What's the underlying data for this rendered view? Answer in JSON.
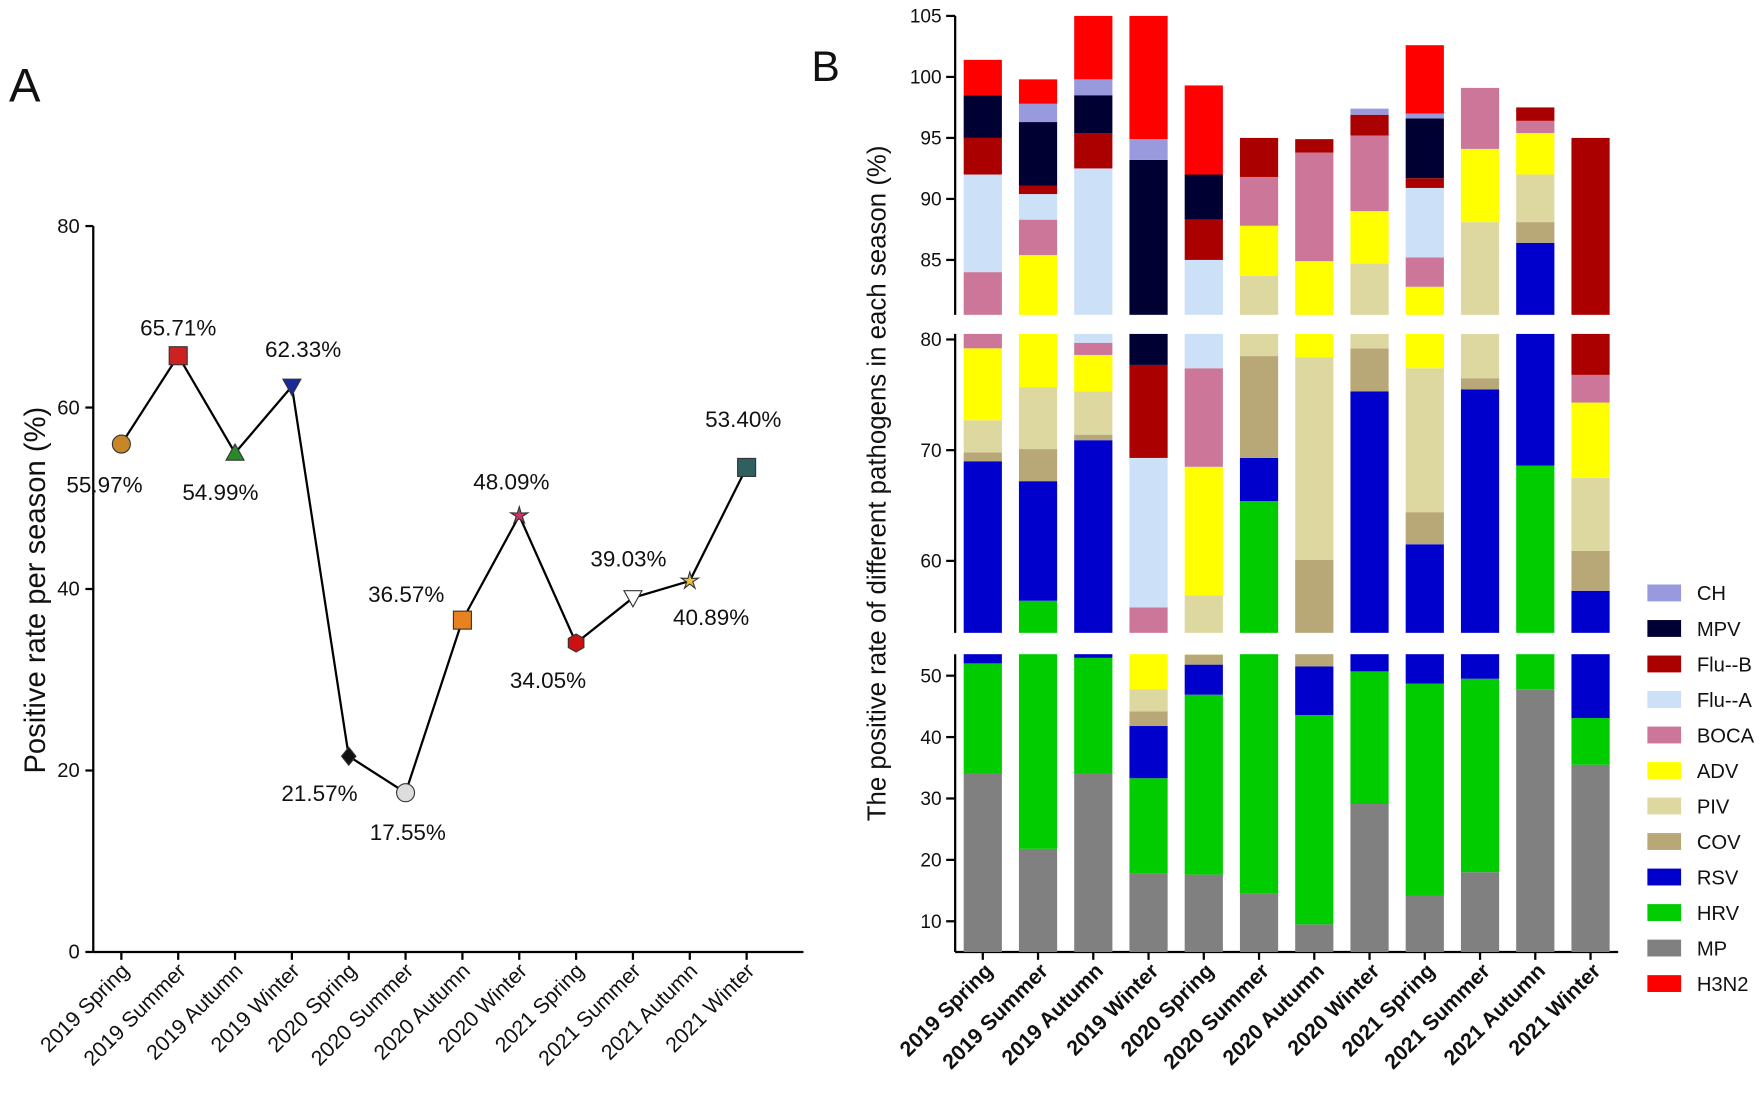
{
  "chart_data": [
    {
      "type": "line",
      "panel_label": "A",
      "y_label": "Positive rate per season (%)",
      "categories": [
        "2019 Spring",
        "2019 Summer",
        "2019 Autumn",
        "2019 Winter",
        "2020 Spring",
        "2020 Summer",
        "2020 Autumn",
        "2020 Winter",
        "2021 Spring",
        "2021 Summer",
        "2021 Autumn",
        "2021 Winter"
      ],
      "values": [
        55.97,
        65.71,
        54.99,
        62.33,
        21.57,
        17.55,
        36.57,
        48.09,
        34.05,
        39.03,
        40.89,
        53.4
      ],
      "value_labels": [
        "55.97%",
        "65.71%",
        "54.99%",
        "62.33%",
        "21.57%",
        "17.55%",
        "36.57%",
        "48.09%",
        "34.05%",
        "39.03%",
        "40.89%",
        "53.40%"
      ],
      "color": "#000000",
      "markers": [
        "circle",
        "square",
        "triangle",
        "triangle-down",
        "diamond",
        "circle",
        "square",
        "star",
        "hexagon",
        "triangle-down",
        "star",
        "square"
      ],
      "marker_colors": [
        "#c8862a",
        "#cc2222",
        "#2a8a2a",
        "#1a2a99",
        "#111111",
        "#dddddd",
        "#e8821e",
        "#cc3366",
        "#cc1111",
        "#ffffff",
        "#e8c040",
        "#2f5f5f"
      ],
      "ylim": [
        0,
        80
      ],
      "yticks": [
        0,
        20,
        40,
        60,
        80
      ]
    },
    {
      "type": "stacked-bar-broken",
      "panel_label": "B",
      "y_label": "The positive rate of different pathogens in each season (%)",
      "categories": [
        "2019 Spring",
        "2019 Summer",
        "2019 Autumn",
        "2019 Winter",
        "2020 Spring",
        "2020 Summer",
        "2020 Autumn",
        "2020 Winter",
        "2021 Spring",
        "2021 Summer",
        "2021 Autumn",
        "2021 Winter"
      ],
      "y_segments": [
        {
          "ylim": [
            5,
            53.5
          ],
          "yticks": [
            10,
            20,
            30,
            40,
            50
          ]
        },
        {
          "ylim": [
            53.5,
            80.5
          ],
          "yticks": [
            60,
            70,
            80
          ]
        },
        {
          "ylim": [
            80.5,
            105
          ],
          "yticks": [
            85,
            90,
            95,
            100,
            105
          ]
        }
      ],
      "series": [
        {
          "name": "MP",
          "color": "#808080",
          "values": [
            34,
            21.8,
            34,
            17.8,
            17.6,
            14.5,
            9.5,
            29.1,
            14.2,
            18.0,
            47.8,
            35.5
          ]
        },
        {
          "name": "HRV",
          "color": "#00cc00",
          "values": [
            18,
            34.6,
            18.9,
            15.5,
            29.3,
            50.9,
            34.1,
            21.6,
            34.5,
            31.5,
            20.8,
            7.6
          ]
        },
        {
          "name": "RSV",
          "color": "#0000cc",
          "values": [
            17,
            10.8,
            18,
            8.5,
            4.9,
            3.9,
            7.9,
            24.6,
            12.8,
            26,
            17.8,
            14.2
          ]
        },
        {
          "name": "COV",
          "color": "#b8a878",
          "values": [
            0.8,
            2.9,
            0.5,
            2.4,
            1.6,
            9.2,
            8.6,
            3.9,
            2.9,
            1.0,
            1.7,
            3.6
          ]
        },
        {
          "name": "PIV",
          "color": "#dcd8a0",
          "values": [
            2.9,
            5.6,
            3.9,
            3.6,
            3.5,
            5.2,
            18.3,
            5.5,
            13,
            11.6,
            3.9,
            6.6
          ]
        },
        {
          "name": "ADV",
          "color": "#ffff00",
          "values": [
            6.5,
            9.7,
            3.3,
            5.7,
            11.6,
            4.1,
            6.5,
            4.3,
            5.4,
            6.0,
            3.4,
            6.8
          ]
        },
        {
          "name": "BOCA",
          "color": "#cc7799",
          "values": [
            4.8,
            2.9,
            1.1,
            2.3,
            8.9,
            4.0,
            8.9,
            6.2,
            2.4,
            5.0,
            1.0,
            2.5
          ]
        },
        {
          "name": "Flu--A",
          "color": "#cce0f8",
          "values": [
            8.0,
            2.1,
            12.8,
            13.5,
            7.6,
            0,
            0,
            0,
            5.7,
            0,
            0,
            0
          ]
        },
        {
          "name": "Flu--B",
          "color": "#aa0000",
          "values": [
            3.0,
            0.7,
            2.9,
            8.4,
            3.3,
            3.2,
            1.1,
            1.7,
            0.8,
            0,
            1.1,
            18.2
          ]
        },
        {
          "name": "MPV",
          "color": "#000033",
          "values": [
            3.5,
            5.2,
            3.1,
            15.5,
            3.7,
            0,
            0,
            0,
            4.9,
            0,
            0,
            0
          ]
        },
        {
          "name": "CH",
          "color": "#9999dd",
          "values": [
            0,
            1.5,
            1.3,
            1.7,
            0,
            0,
            0,
            0.5,
            0.4,
            0,
            0,
            0
          ]
        },
        {
          "name": "H3N2",
          "color": "#ff0000",
          "values": [
            2.9,
            2.0,
            5.2,
            10.1,
            7.3,
            0,
            0,
            0,
            5.6,
            0,
            0,
            0
          ]
        }
      ]
    }
  ]
}
